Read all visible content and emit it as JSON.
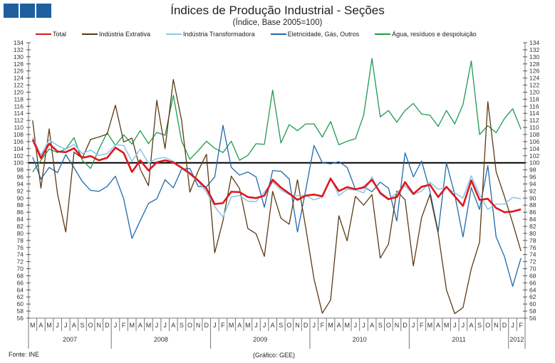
{
  "chart_data": {
    "type": "line",
    "title": "Índices de Produção Industrial - Seções",
    "subtitle": "(Índice, Base 2005=100)",
    "ylim": [
      56,
      134
    ],
    "ytick_step": 2,
    "reference_line": 100,
    "months": [
      "M",
      "A",
      "M",
      "J",
      "J",
      "A",
      "S",
      "O",
      "N",
      "D",
      "J",
      "F",
      "M",
      "A",
      "M",
      "J",
      "J",
      "A",
      "S",
      "O",
      "N",
      "D",
      "J",
      "F",
      "M",
      "A",
      "M",
      "J",
      "J",
      "A",
      "S",
      "O",
      "N",
      "D",
      "J",
      "F",
      "M",
      "A",
      "M",
      "J",
      "J",
      "A",
      "S",
      "O",
      "N",
      "D",
      "J",
      "F",
      "M",
      "A",
      "M",
      "J",
      "J",
      "A",
      "S",
      "O",
      "N",
      "D",
      "J",
      "F"
    ],
    "years": [
      {
        "label": "2007",
        "months": 10
      },
      {
        "label": "2008",
        "months": 12
      },
      {
        "label": "2009",
        "months": 12
      },
      {
        "label": "2010",
        "months": 12
      },
      {
        "label": "2011",
        "months": 12
      },
      {
        "label": "2012",
        "months": 2
      }
    ],
    "legend_position": "top",
    "series": [
      {
        "name": "Total",
        "color": "#e0161c",
        "width": 2.6,
        "values": [
          106.6,
          101.3,
          105.4,
          103.2,
          103,
          104.1,
          101.4,
          101.9,
          100.7,
          101.4,
          104.3,
          102.8,
          97.4,
          100.7,
          97.8,
          100.1,
          100.7,
          100.1,
          98.6,
          97,
          95,
          92.7,
          88.3,
          88.6,
          91.8,
          91.7,
          90.3,
          90,
          90.7,
          95.2,
          93,
          91.3,
          89.5,
          90.7,
          91,
          90.5,
          95.5,
          92,
          93.1,
          92.5,
          93,
          95.2,
          91.5,
          89.7,
          90.3,
          94.5,
          91.2,
          93.2,
          93.8,
          90.3,
          93.2,
          90.5,
          87.8,
          95,
          89.5,
          89.8,
          87.2,
          86,
          86.2,
          86.8
        ]
      },
      {
        "name": "Indústria Extrativa",
        "color": "#5a3a16",
        "width": 1.3,
        "values": [
          112,
          92.8,
          109.6,
          91.3,
          80.4,
          103,
          101.3,
          106.6,
          107.3,
          108.1,
          116.3,
          105.9,
          107,
          98.2,
          93.5,
          117.7,
          104,
          123.6,
          112,
          91.7,
          97.7,
          102.4,
          74.5,
          83.6,
          96.2,
          92.7,
          81.4,
          79.9,
          73.5,
          91.9,
          84.3,
          82.6,
          95.2,
          81.6,
          67.1,
          57.4,
          61.1,
          85,
          77.9,
          90.5,
          88,
          91,
          73,
          77,
          92,
          89.5,
          70.8,
          84.5,
          91,
          80,
          64,
          57.3,
          59,
          70,
          77.5,
          117.3,
          97.5,
          90.5,
          83,
          75
        ]
      },
      {
        "name": "Indústria Transformadora",
        "color": "#8ec8ea",
        "width": 1.6,
        "values": [
          107.3,
          102.2,
          106.5,
          104.9,
          103.8,
          105.2,
          102.6,
          103.6,
          102.1,
          102.6,
          105.1,
          104.9,
          100.4,
          103.9,
          99.9,
          101.2,
          101.5,
          100.4,
          98.4,
          96.7,
          94.7,
          91.7,
          87.6,
          84.6,
          90.3,
          90.7,
          89.1,
          89,
          91.7,
          94.6,
          92.3,
          91,
          90.7,
          90.7,
          89.5,
          90.3,
          95.8,
          90.7,
          92.5,
          92.3,
          91.5,
          96,
          91,
          89.5,
          91.5,
          93.5,
          91,
          92,
          94.5,
          92.5,
          93,
          91.5,
          90,
          96.3,
          91,
          86.8,
          88.3,
          88.3,
          90.2,
          89.8
        ]
      },
      {
        "name": "Eletricidade, Gás, Outros",
        "color": "#1f6aad",
        "width": 1.3,
        "values": [
          101.6,
          95.4,
          98.7,
          97.2,
          102.3,
          98.6,
          94.7,
          92.2,
          91.9,
          93.3,
          96.2,
          89.8,
          78.6,
          83.6,
          88.5,
          89.8,
          95.2,
          92.9,
          98.2,
          98.4,
          93.3,
          93.2,
          96,
          110.6,
          98.7,
          96.5,
          97.4,
          96,
          87.4,
          97.8,
          97.6,
          95.4,
          80.4,
          92.3,
          104.9,
          100,
          99.7,
          100.3,
          98.7,
          92.5,
          93.2,
          91.8,
          94.5,
          92.8,
          83.5,
          102.8,
          96,
          100.5,
          92,
          80.5,
          100,
          91,
          79,
          93,
          86.8,
          99.2,
          79,
          73.5,
          65,
          73
        ]
      },
      {
        "name": "Água, resíduos e despoluição",
        "color": "#1f9a4f",
        "width": 1.3,
        "values": [
          97.4,
          100.7,
          103.9,
          102.9,
          103.9,
          107.1,
          100.7,
          98.4,
          103.8,
          108.5,
          104.9,
          107.9,
          105.3,
          109.1,
          105.4,
          108.6,
          107.8,
          119.1,
          106.1,
          101,
          103.4,
          106.1,
          104.1,
          102.9,
          106.1,
          100.7,
          102.1,
          105.4,
          105.2,
          120.6,
          105.6,
          110.8,
          109.1,
          111,
          111,
          107.3,
          111.7,
          105.1,
          106.1,
          106.8,
          113.5,
          129.5,
          113,
          114.8,
          111.5,
          114.8,
          116.8,
          113.8,
          113.5,
          110.3,
          114.8,
          111,
          116.5,
          128.8,
          108,
          110.5,
          108.5,
          112.5,
          115.3,
          109.5
        ]
      }
    ]
  },
  "footer": {
    "source": "Fonte: INE",
    "credit": "(Gráfico: GEE)"
  }
}
